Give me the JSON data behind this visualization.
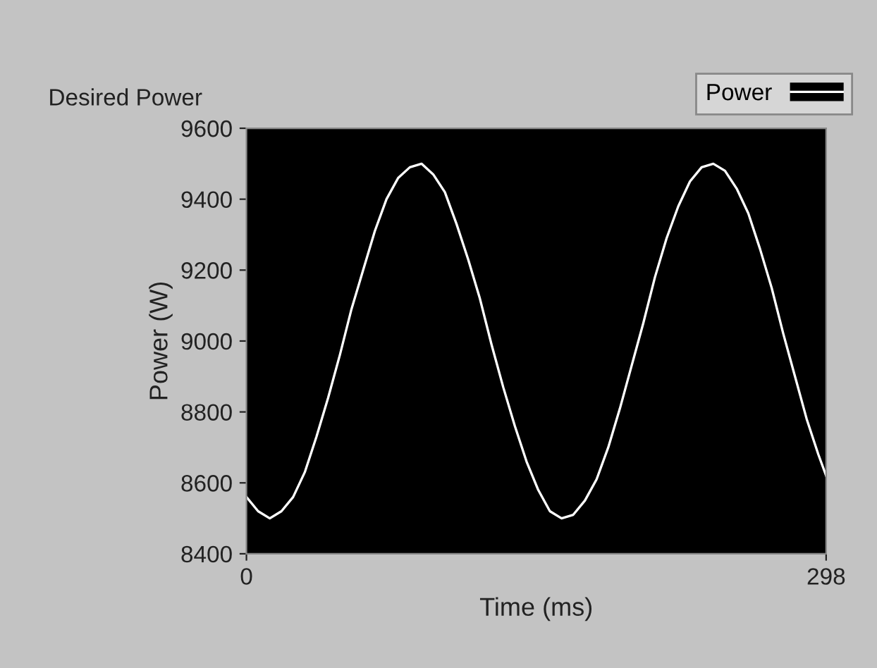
{
  "chart_data": {
    "type": "line",
    "title": "Desired Power",
    "xlabel": "Time (ms)",
    "ylabel": "Power (W)",
    "x": [
      0,
      6,
      12,
      18,
      24,
      30,
      36,
      42,
      48,
      54,
      60,
      66,
      72,
      78,
      84,
      90,
      96,
      102,
      108,
      114,
      120,
      126,
      132,
      138,
      144,
      150,
      156,
      162,
      168,
      174,
      180,
      186,
      192,
      198,
      204,
      210,
      216,
      222,
      228,
      234,
      240,
      246,
      252,
      258,
      264,
      270,
      276,
      282,
      288,
      294,
      298
    ],
    "series": [
      {
        "name": "Power",
        "color": "#ffffff",
        "values": [
          8560,
          8520,
          8500,
          8520,
          8560,
          8630,
          8730,
          8840,
          8960,
          9090,
          9200,
          9310,
          9400,
          9460,
          9490,
          9500,
          9470,
          9420,
          9330,
          9230,
          9120,
          8990,
          8870,
          8760,
          8660,
          8580,
          8520,
          8500,
          8510,
          8550,
          8610,
          8700,
          8810,
          8930,
          9050,
          9180,
          9290,
          9380,
          9450,
          9490,
          9500,
          9480,
          9430,
          9360,
          9260,
          9150,
          9020,
          8900,
          8780,
          8680,
          8620
        ]
      }
    ],
    "xlim": [
      0,
      298
    ],
    "xticks": [
      0,
      298
    ],
    "ylim": [
      8400,
      9600
    ],
    "yticks": [
      8400,
      8600,
      8800,
      9000,
      9200,
      9400,
      9600
    ],
    "grid": false,
    "legend": "top right",
    "marker": "none",
    "line_style": "solid"
  }
}
